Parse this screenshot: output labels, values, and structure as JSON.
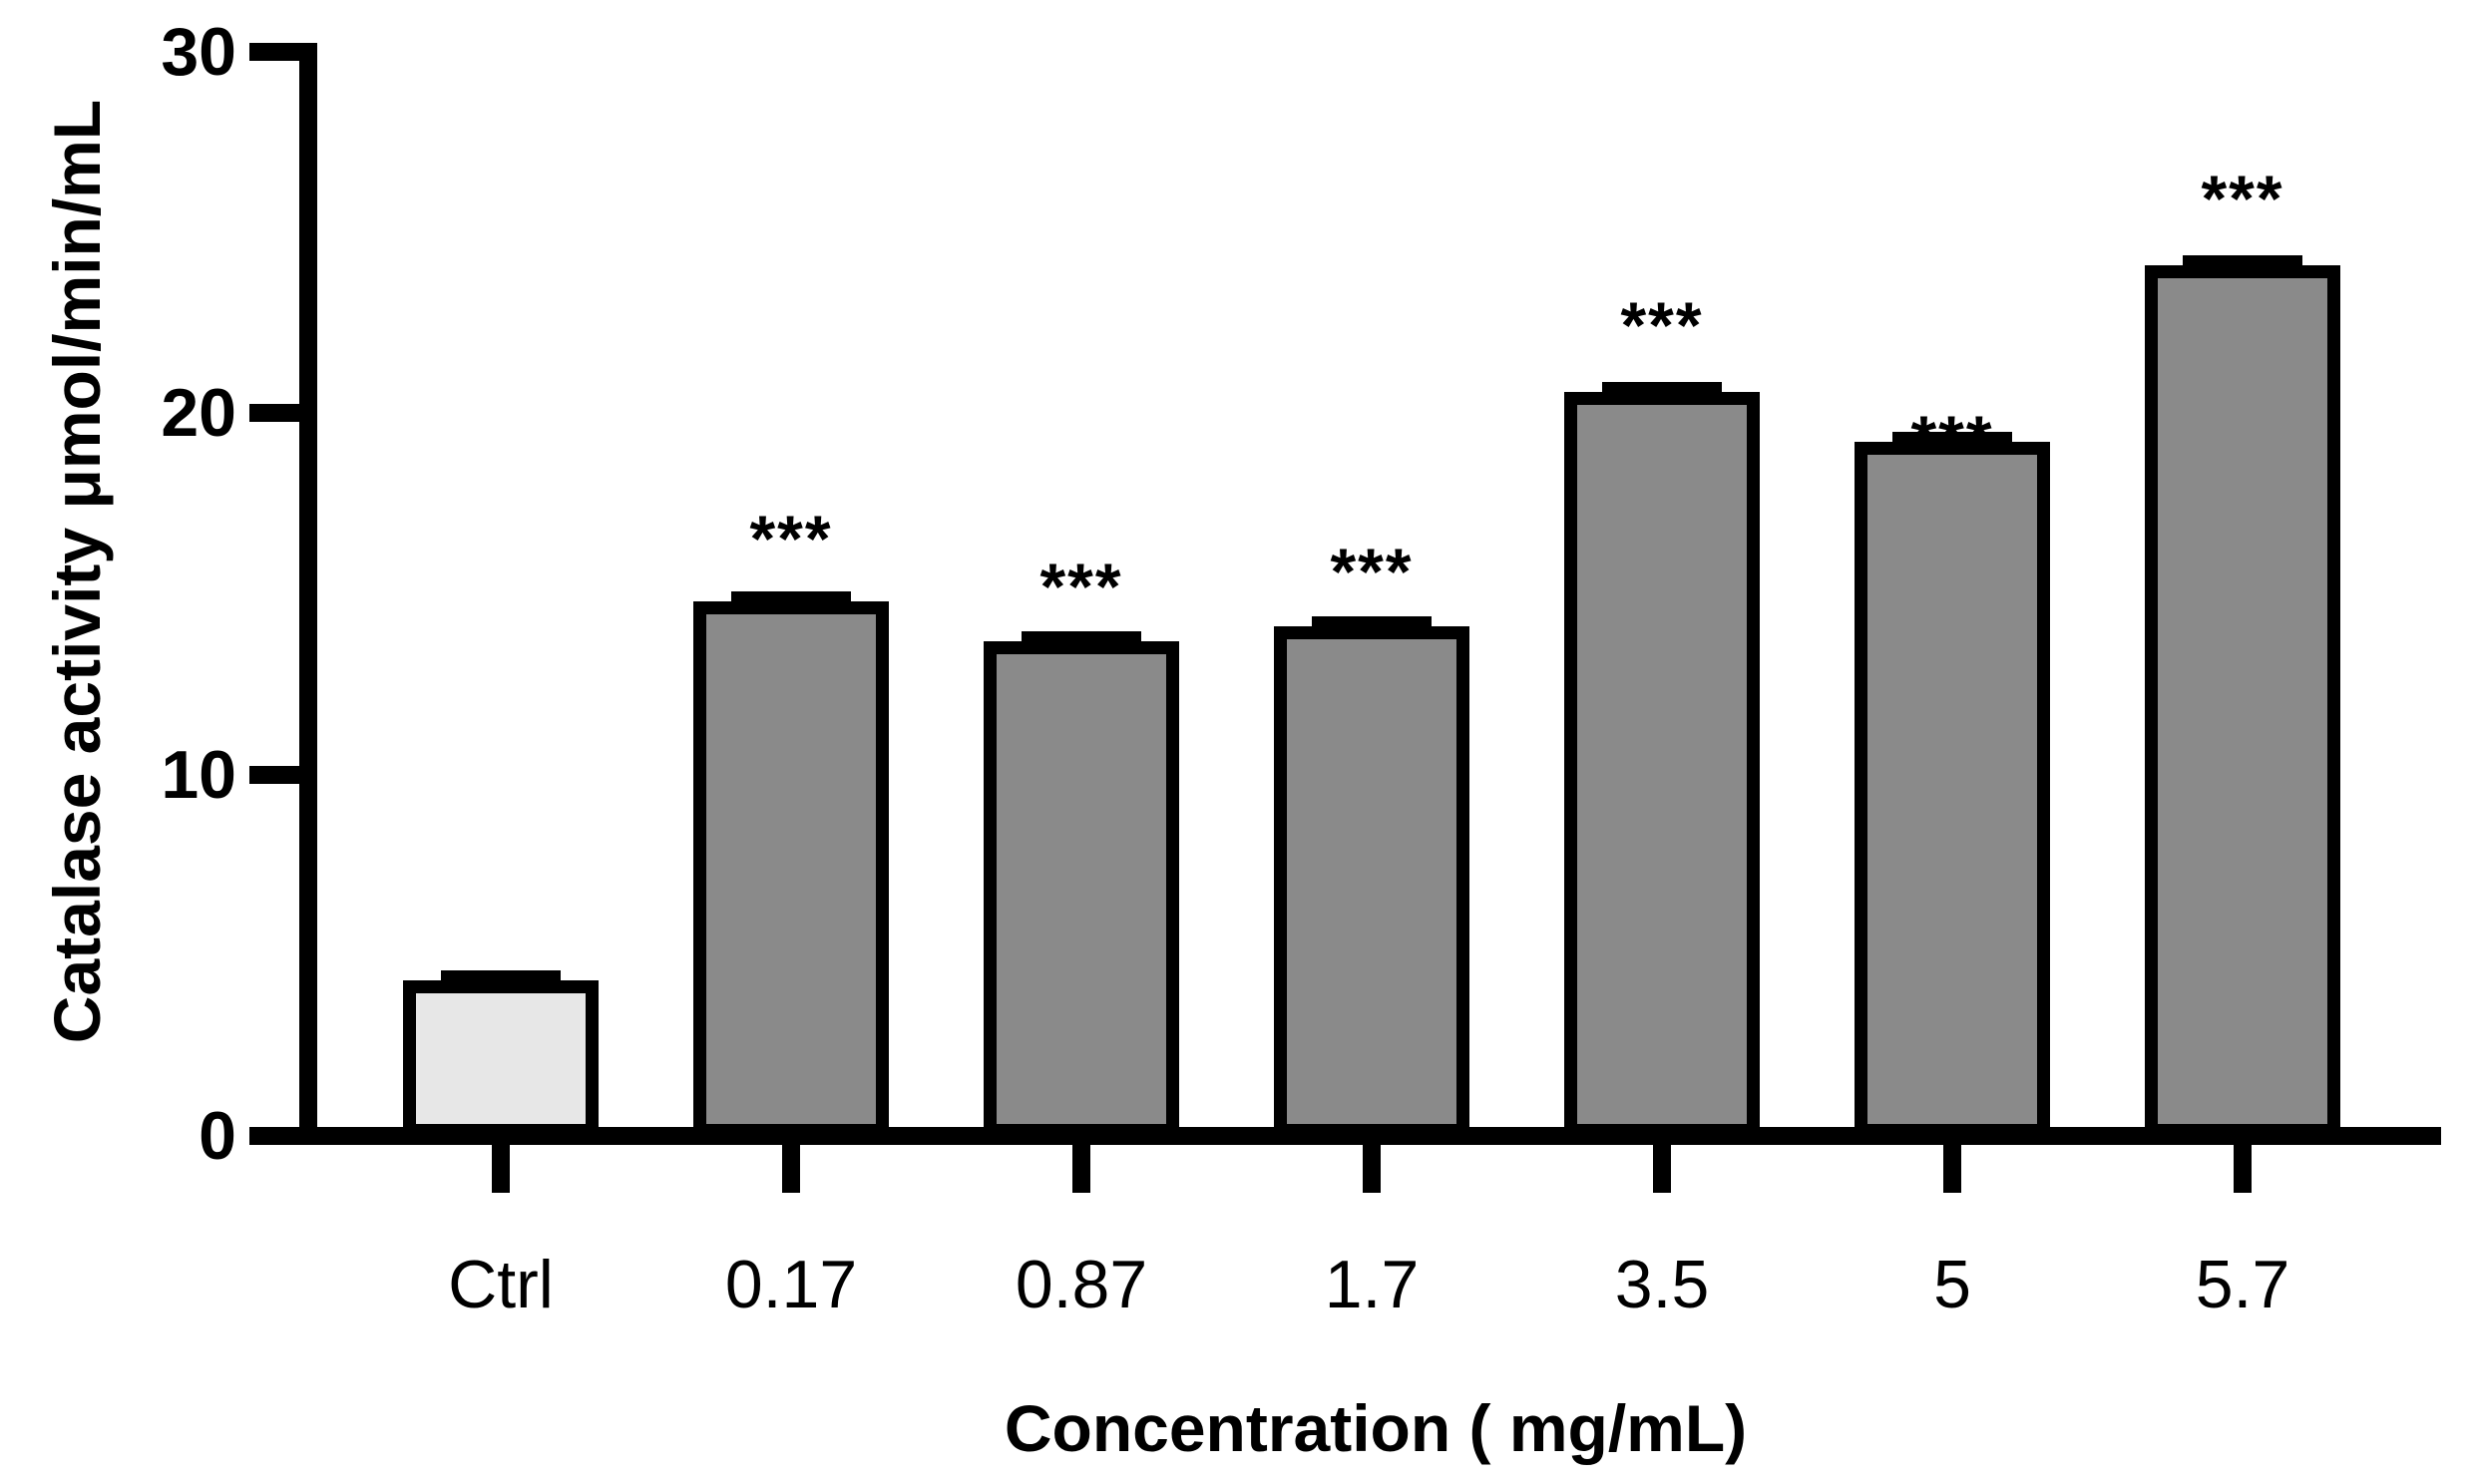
{
  "figure": {
    "background_color": "#ffffff",
    "axis_color": "#000000"
  },
  "chart_data": {
    "type": "bar",
    "title": "",
    "xlabel": "Concentration ( mg/mL)",
    "ylabel": "Catalase activity μmol/min/mL",
    "categories": [
      "Ctrl",
      "0.17",
      "0.87",
      "1.7",
      "3.5",
      "5",
      "5.7"
    ],
    "values": [
      4.3,
      14.8,
      13.7,
      14.1,
      20.6,
      19.2,
      24.1
    ],
    "errors": [
      0.2,
      0.2,
      0.2,
      0.2,
      0.2,
      0.15,
      0.15
    ],
    "significance": [
      "",
      "***",
      "***",
      "***",
      "***",
      "***",
      "***"
    ],
    "bar_colors": [
      "#e7e7e7",
      "#8a8a8a",
      "#8a8a8a",
      "#8a8a8a",
      "#8a8a8a",
      "#8a8a8a",
      "#8a8a8a"
    ],
    "bar_border_color": "#000000",
    "y_ticks": [
      "0",
      "10",
      "20",
      "30"
    ],
    "y_tick_values": [
      0,
      10,
      20,
      30
    ],
    "ylim": [
      0,
      30
    ],
    "grid": false,
    "legend": null
  }
}
